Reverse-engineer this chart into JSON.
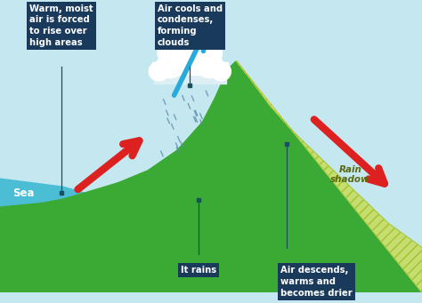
{
  "bg_sky_color": "#c5e8f0",
  "bg_sea_color": "#4bbdd4",
  "mountain_color": "#3aaa35",
  "rain_shadow_fill": "#dde87a",
  "rain_shadow_hatch_color": "#a8c030",
  "label_box_color": "#1a3a5c",
  "label_text_color": "#ffffff",
  "sea_label_color": "#ffffff",
  "arrow_red_color": "#dd2020",
  "arrow_blue_color": "#29aadd",
  "rain_line_color": "#5588aa",
  "cloud_color": "#ffffff",
  "cloud_shadow": "#ddeef5",
  "teal_line_color": "#1a5060",
  "labels": {
    "warm_moist": "Warm, moist\nair is forced\nto rise over\nhigh areas",
    "air_cools": "Air cools and\ncondenses,\nforming\nclouds",
    "it_rains": "It rains",
    "air_descends": "Air descends,\nwarms and\nbecomes drier",
    "rain_shadow": "Rain\nshadow",
    "sea": "Sea"
  },
  "figsize": [
    4.74,
    3.41
  ],
  "dpi": 100
}
